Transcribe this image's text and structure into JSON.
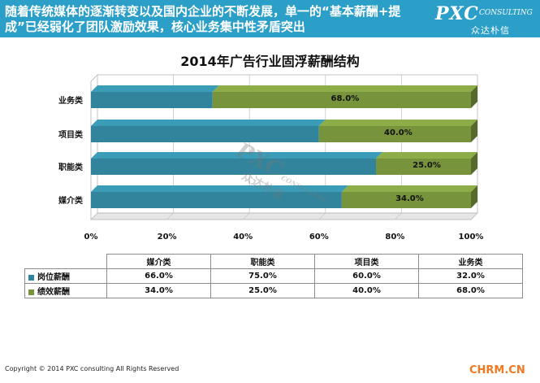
{
  "header": {
    "text": "随着传统媒体的逐渐转变以及国内企业的不断发展，单一的“基本薪酬+提成”已经弱化了团队激励效果，核心业务集中性矛盾突出",
    "logo_main": "PXC",
    "logo_sub": "CONSULTING",
    "logo_cn": "众达朴信"
  },
  "watermark": {
    "main": "PXC",
    "sub": "CONSULTING",
    "cn": "众达朴信"
  },
  "chart_data": {
    "type": "bar",
    "orientation": "horizontal",
    "stacked": "percent",
    "title": "2014年广告行业固浮薪酬结构",
    "categories": [
      "业务类",
      "项目类",
      "职能类",
      "媒介类"
    ],
    "series": [
      {
        "name": "岗位薪酬",
        "color": "#31849b",
        "values": [
          32.0,
          60.0,
          75.0,
          66.0
        ]
      },
      {
        "name": "绩效薪酬",
        "color": "#77933c",
        "values": [
          68.0,
          40.0,
          25.0,
          34.0
        ]
      }
    ],
    "data_labels": {
      "series": "绩效薪酬",
      "values": [
        "68.0%",
        "40.0%",
        "25.0%",
        "34.0%"
      ]
    },
    "x_ticks": [
      "0%",
      "20%",
      "40%",
      "60%",
      "80%",
      "100%"
    ],
    "xlim": [
      0,
      100
    ],
    "grid": true
  },
  "table": {
    "columns": [
      "媒介类",
      "职能类",
      "项目类",
      "业务类"
    ],
    "rows": [
      {
        "label": "岗位薪酬",
        "color": "#31849b",
        "values": [
          "66.0%",
          "75.0%",
          "60.0%",
          "32.0%"
        ]
      },
      {
        "label": "绩效薪酬",
        "color": "#77933c",
        "values": [
          "34.0%",
          "25.0%",
          "40.0%",
          "68.0%"
        ]
      }
    ]
  },
  "footer": {
    "copyright": "Copyright © 2014  PXC consulting All Rights Reserved",
    "site": "CHRM.CN"
  }
}
